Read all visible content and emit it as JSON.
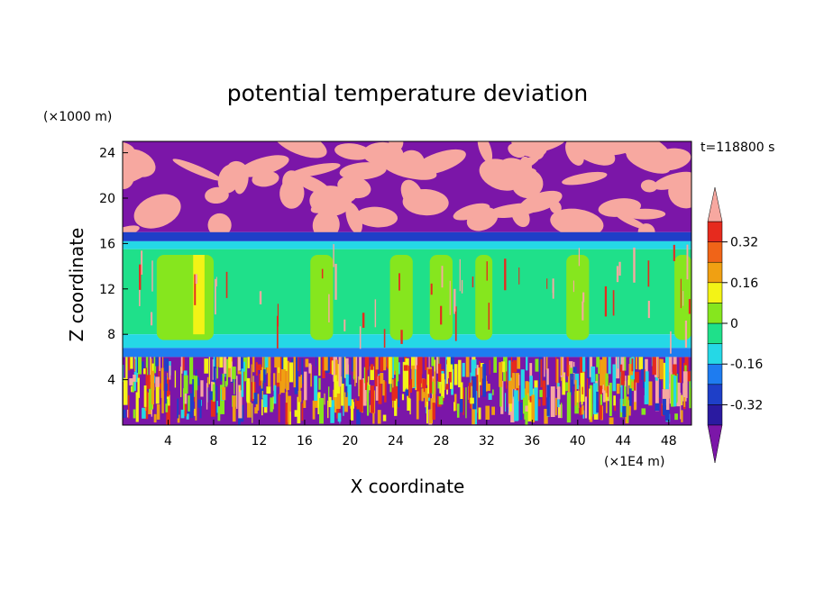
{
  "chart_data": {
    "type": "heatmap",
    "title": "potential temperature deviation",
    "xlabel": "X coordinate",
    "ylabel": "Z coordinate",
    "x_unit": "(×1E4 m)",
    "y_unit": "(×1000 m)",
    "time_label": "t=118800 s",
    "xlim": [
      0,
      50
    ],
    "ylim": [
      0,
      25
    ],
    "x_ticks": [
      "4",
      "8",
      "12",
      "16",
      "20",
      "24",
      "28",
      "32",
      "36",
      "40",
      "44",
      "48"
    ],
    "y_ticks": [
      "4",
      "8",
      "12",
      "16",
      "20",
      "24"
    ],
    "colorbar": {
      "labels": [
        "0.32",
        "0.16",
        "0",
        "-0.16",
        "-0.32"
      ],
      "label_values": [
        0.32,
        0.16,
        0,
        -0.16,
        -0.32
      ],
      "levels": [
        -0.4,
        -0.32,
        -0.24,
        -0.16,
        -0.08,
        0,
        0.08,
        0.16,
        0.24,
        0.32,
        0.4
      ],
      "colors": [
        "#7b16a8",
        "#2a1aa0",
        "#1e3fc8",
        "#1e7cf0",
        "#25d8e6",
        "#1fe08a",
        "#86e61e",
        "#f3f316",
        "#f0a012",
        "#f06418",
        "#e62a1e",
        "#f7a8a0"
      ],
      "over_color": "#f7a8a0",
      "under_color": "#7b16a8"
    },
    "layers": [
      {
        "z": [
          0,
          6
        ],
        "description_colors": [
          "#7b16a8",
          "#1e3fc8",
          "#25d8e6",
          "#86e61e",
          "#f3f316",
          "#f0a012",
          "#e62a1e",
          "#f7a8a0"
        ]
      },
      {
        "z": [
          6,
          6.8
        ],
        "color": "#1e7cf0"
      },
      {
        "z": [
          6.8,
          8
        ],
        "color": "#25d8e6"
      },
      {
        "z": [
          8,
          15.5
        ],
        "color": "#1fe08a"
      },
      {
        "z": [
          15.5,
          16.2
        ],
        "color": "#25d8e6"
      },
      {
        "z": [
          16.2,
          17
        ],
        "color": "#1e3fc8"
      },
      {
        "z": [
          17,
          25
        ],
        "color": "#7b16a8",
        "blobs_color": "#f7a8a0"
      }
    ]
  }
}
